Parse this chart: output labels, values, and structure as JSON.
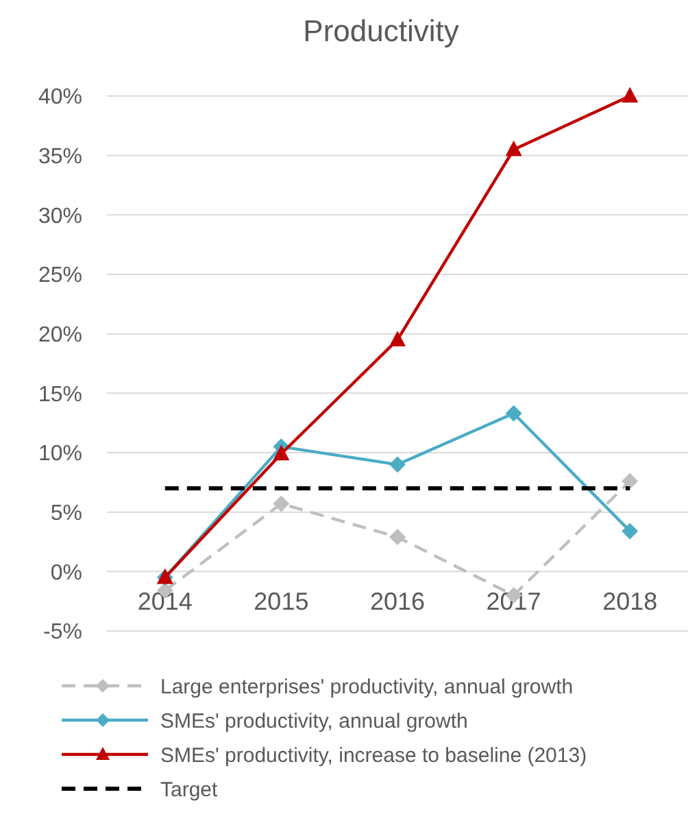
{
  "chart_data": {
    "type": "line",
    "title": "Productivity",
    "categories": [
      "2014",
      "2015",
      "2016",
      "2017",
      "2018"
    ],
    "series": [
      {
        "name": "Large enterprises' productivity, annual growth",
        "color": "#bfbfbf",
        "values": [
          -1.6,
          5.7,
          2.9,
          -2.0,
          7.6
        ],
        "marker": "diamond",
        "line_style": "dashed"
      },
      {
        "name": "SMEs' productivity, annual growth",
        "color": "#4bacc6",
        "values": [
          -0.5,
          10.5,
          9.0,
          13.3,
          3.4
        ],
        "marker": "diamond",
        "line_style": "solid"
      },
      {
        "name": "SMEs' productivity, increase to baseline (2013)",
        "color": "#c00000",
        "values": [
          -0.5,
          9.9,
          19.5,
          35.5,
          40.0
        ],
        "marker": "triangle",
        "line_style": "solid"
      },
      {
        "name": "Target",
        "color": "#000000",
        "values": [
          7,
          7,
          7,
          7,
          7
        ],
        "marker": "none",
        "line_style": "dashed"
      }
    ],
    "ylim": [
      -5,
      40
    ],
    "yticks": [
      {
        "value": -5,
        "label": "-5%"
      },
      {
        "value": 0,
        "label": "0%"
      },
      {
        "value": 5,
        "label": "5%"
      },
      {
        "value": 10,
        "label": "10%"
      },
      {
        "value": 15,
        "label": "15%"
      },
      {
        "value": 20,
        "label": "20%"
      },
      {
        "value": 25,
        "label": "25%"
      },
      {
        "value": 30,
        "label": "30%"
      },
      {
        "value": 35,
        "label": "35%"
      },
      {
        "value": 40,
        "label": "40%"
      }
    ],
    "grid": "y",
    "legend": "bottom"
  }
}
